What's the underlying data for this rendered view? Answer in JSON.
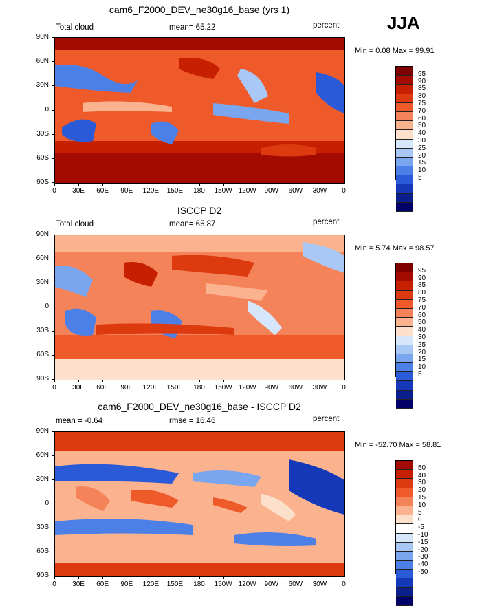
{
  "season": "JJA",
  "lat_labels": [
    "90N",
    "60N",
    "30N",
    "0",
    "30S",
    "60S",
    "90S"
  ],
  "lon_labels": [
    "0",
    "30E",
    "60E",
    "90E",
    "120E",
    "150E",
    "180",
    "150W",
    "120W",
    "90W",
    "60W",
    "30W",
    "0"
  ],
  "panels": [
    {
      "title": "cam6_F2000_DEV_ne30g16_base (yrs 1)",
      "left_label": "Total cloud",
      "center_label": "mean=   65.22",
      "right_label": "percent",
      "minmax": "Min =    0.08 Max =   99.91",
      "colorbar_levels": [
        "95",
        "90",
        "85",
        "80",
        "75",
        "70",
        "60",
        "50",
        "40",
        "30",
        "25",
        "20",
        "15",
        "10",
        "5"
      ]
    },
    {
      "title": "ISCCP D2",
      "left_label": "Total cloud",
      "center_label": "mean=   65.87",
      "right_label": "percent",
      "minmax": "Min =    5.74 Max =   98.57",
      "colorbar_levels": [
        "95",
        "90",
        "85",
        "80",
        "75",
        "70",
        "60",
        "50",
        "40",
        "30",
        "25",
        "20",
        "15",
        "10",
        "5"
      ]
    },
    {
      "title": "cam6_F2000_DEV_ne30g16_base - ISCCP D2",
      "left_label": "mean =   -0.64",
      "center_label": "rmse =   16.46",
      "right_label": "percent",
      "minmax": "Min = -52.70 Max =   58.81",
      "colorbar_levels": [
        "50",
        "40",
        "30",
        "20",
        "15",
        "10",
        "5",
        "0",
        "-5",
        "-10",
        "-15",
        "-20",
        "-30",
        "-40",
        "-50"
      ]
    }
  ],
  "colors": {
    "abs_scale": [
      "#7f0000",
      "#a30a00",
      "#c62000",
      "#dd3a10",
      "#ee5a2a",
      "#f5835a",
      "#fab28f",
      "#fde0cc",
      "#d6e6fb",
      "#a9c8f6",
      "#7aa6ef",
      "#4d80e6",
      "#2a5ad8",
      "#1438b8",
      "#0a1f8c",
      "#000066"
    ],
    "diff_scale": [
      "#a30a00",
      "#c62000",
      "#dd3a10",
      "#ee5a2a",
      "#f5835a",
      "#fab28f",
      "#fde0cc",
      "#ffffff",
      "#d6e6fb",
      "#a9c8f6",
      "#7aa6ef",
      "#4d80e6",
      "#2a5ad8",
      "#1438b8",
      "#0a1f8c",
      "#000066"
    ]
  }
}
